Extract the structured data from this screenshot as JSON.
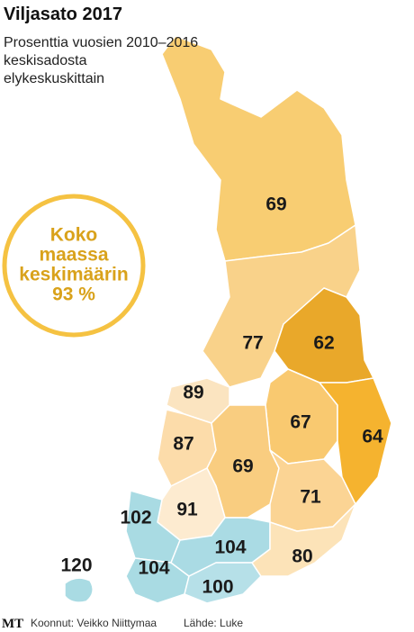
{
  "header": {
    "title": "Viljasato 2017",
    "subtitle": [
      "Prosenttia vuosien 2010–2016",
      "keskisadosta",
      "elykeskuskittain"
    ]
  },
  "callout": {
    "lines": [
      "Koko",
      "maassa",
      "keskimäärin",
      "93 %"
    ]
  },
  "regions": [
    69,
    77,
    62,
    67,
    64,
    89,
    87,
    69,
    71,
    91,
    102,
    104,
    104,
    100,
    80,
    120
  ],
  "footer": {
    "logo": "MT",
    "author": "Koonnut: Veikko Niittymaa",
    "source": "Lähde: Luke"
  }
}
